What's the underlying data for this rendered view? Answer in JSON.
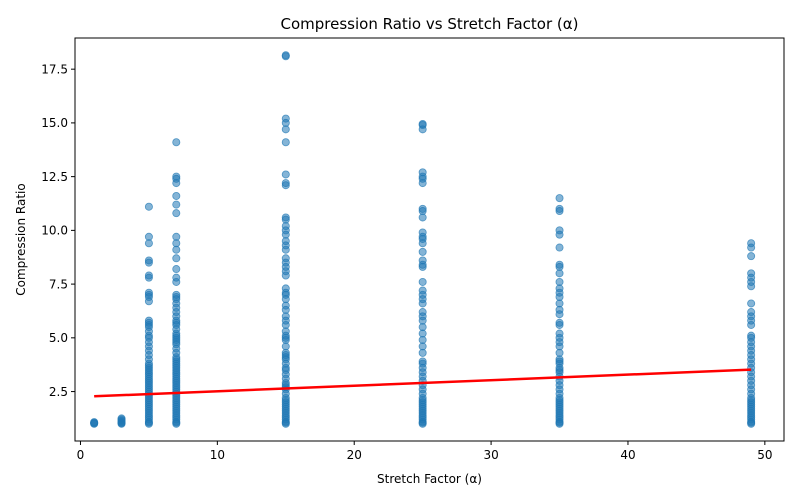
{
  "chart_data": {
    "type": "scatter",
    "title": "Compression Ratio vs Stretch Factor (α)",
    "xlabel": "Stretch Factor (α)",
    "ylabel": "Compression Ratio",
    "xlim": [
      -0.4,
      51.4
    ],
    "ylim": [
      0.2,
      18.95
    ],
    "xticks": [
      0,
      10,
      20,
      30,
      40,
      50
    ],
    "yticks": [
      2.5,
      5.0,
      7.5,
      10.0,
      12.5,
      15.0,
      17.5
    ],
    "ytick_labels": [
      "2.5",
      "5.0",
      "7.5",
      "10.0",
      "12.5",
      "15.0",
      "17.5"
    ],
    "grid": false,
    "point_color": "#1f77b4",
    "point_alpha": 0.55,
    "trend_color": "#ff0000",
    "points": [
      {
        "x": 1,
        "y": [
          1.0,
          1.02,
          1.05,
          1.08
        ]
      },
      {
        "x": 3,
        "y": [
          1.0,
          1.03,
          1.06,
          1.1,
          1.15,
          1.2,
          1.25
        ]
      },
      {
        "x": 5,
        "y": [
          1.0,
          1.05,
          1.1,
          1.2,
          1.3,
          1.4,
          1.5,
          1.6,
          1.7,
          1.8,
          1.9,
          2.0,
          2.1,
          2.2,
          2.3,
          2.4,
          2.5,
          2.6,
          2.7,
          2.8,
          2.9,
          3.0,
          3.1,
          3.2,
          3.3,
          3.4,
          3.5,
          3.6,
          3.7,
          3.8,
          4.0,
          4.2,
          4.4,
          4.6,
          4.8,
          5.0,
          5.1,
          5.3,
          5.5,
          5.6,
          5.7,
          5.8,
          6.7,
          6.9,
          7.0,
          7.1,
          7.8,
          7.9,
          8.5,
          8.6,
          9.4,
          9.7,
          11.1
        ]
      },
      {
        "x": 7,
        "y": [
          1.0,
          1.05,
          1.1,
          1.2,
          1.3,
          1.4,
          1.5,
          1.6,
          1.7,
          1.8,
          1.9,
          2.0,
          2.1,
          2.2,
          2.3,
          2.4,
          2.5,
          2.6,
          2.7,
          2.8,
          2.9,
          3.0,
          3.1,
          3.2,
          3.3,
          3.4,
          3.5,
          3.6,
          3.7,
          3.8,
          3.9,
          4.0,
          4.1,
          4.3,
          4.5,
          4.7,
          4.8,
          4.9,
          5.0,
          5.1,
          5.2,
          5.4,
          5.6,
          5.7,
          5.8,
          6.0,
          6.2,
          6.4,
          6.6,
          6.8,
          6.9,
          7.0,
          7.6,
          7.8,
          8.2,
          8.7,
          9.1,
          9.4,
          9.7,
          10.8,
          11.2,
          11.6,
          12.2,
          12.4,
          12.5,
          14.1
        ]
      },
      {
        "x": 15,
        "y": [
          1.0,
          1.05,
          1.1,
          1.2,
          1.3,
          1.4,
          1.5,
          1.6,
          1.7,
          1.8,
          1.9,
          2.0,
          2.1,
          2.2,
          2.4,
          2.6,
          2.7,
          2.8,
          2.9,
          3.1,
          3.3,
          3.5,
          3.6,
          3.8,
          4.0,
          4.1,
          4.2,
          4.3,
          4.6,
          4.9,
          5.0,
          5.1,
          5.3,
          5.6,
          5.8,
          6.0,
          6.3,
          6.5,
          6.8,
          7.0,
          7.1,
          7.3,
          7.9,
          8.1,
          8.3,
          8.5,
          8.7,
          9.1,
          9.3,
          9.5,
          9.8,
          10.0,
          10.2,
          10.5,
          10.6,
          12.1,
          12.2,
          12.6,
          14.1,
          14.7,
          15.0,
          15.2,
          18.1,
          18.15
        ]
      },
      {
        "x": 25,
        "y": [
          1.0,
          1.05,
          1.1,
          1.2,
          1.3,
          1.4,
          1.5,
          1.6,
          1.7,
          1.8,
          1.9,
          2.0,
          2.1,
          2.2,
          2.4,
          2.6,
          2.8,
          3.0,
          3.2,
          3.4,
          3.6,
          3.8,
          3.9,
          4.3,
          4.6,
          4.9,
          5.2,
          5.5,
          5.8,
          6.0,
          6.2,
          6.6,
          6.8,
          7.0,
          7.2,
          7.6,
          8.3,
          8.4,
          8.6,
          9.0,
          9.4,
          9.6,
          9.7,
          9.9,
          10.6,
          10.9,
          11.0,
          12.2,
          12.4,
          12.5,
          12.7,
          14.7,
          14.9,
          14.95
        ]
      },
      {
        "x": 35,
        "y": [
          1.0,
          1.05,
          1.1,
          1.2,
          1.3,
          1.4,
          1.5,
          1.6,
          1.7,
          1.8,
          1.9,
          2.0,
          2.1,
          2.2,
          2.4,
          2.6,
          2.8,
          3.0,
          3.2,
          3.4,
          3.5,
          3.6,
          3.8,
          3.9,
          4.0,
          4.3,
          4.6,
          4.8,
          5.0,
          5.2,
          5.6,
          5.7,
          6.1,
          6.3,
          6.6,
          6.9,
          7.1,
          7.3,
          7.6,
          8.0,
          8.3,
          8.4,
          9.2,
          9.8,
          10.0,
          10.9,
          11.0,
          11.5
        ]
      },
      {
        "x": 49,
        "y": [
          1.0,
          1.05,
          1.1,
          1.2,
          1.3,
          1.4,
          1.5,
          1.6,
          1.7,
          1.8,
          1.9,
          2.0,
          2.1,
          2.2,
          2.4,
          2.6,
          2.8,
          3.0,
          3.2,
          3.4,
          3.6,
          3.8,
          4.0,
          4.2,
          4.4,
          4.6,
          4.8,
          5.0,
          5.1,
          5.6,
          5.8,
          6.0,
          6.2,
          6.6,
          7.4,
          7.6,
          7.8,
          8.0,
          8.8,
          9.2,
          9.4
        ]
      }
    ],
    "trend_line": {
      "x": [
        1,
        49
      ],
      "y": [
        2.28,
        3.52
      ]
    }
  }
}
